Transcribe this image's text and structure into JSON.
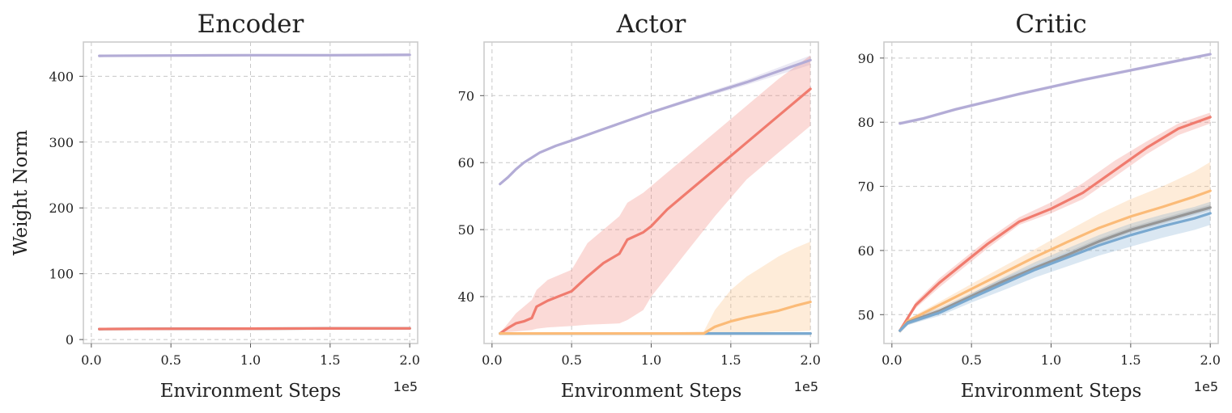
{
  "colors": {
    "purple": "#b3acd6",
    "red": "#f07b6e",
    "orange": "#fbbb78",
    "gray": "#969696",
    "blue": "#7aa9d0"
  },
  "chart_data": [
    {
      "type": "line",
      "title": "Encoder",
      "xlabel": "Environment Steps",
      "ylabel": "Weight Norm",
      "x_offset_label": "1e5",
      "xlim": [
        -0.05,
        2.05
      ],
      "ylim": [
        -6,
        452
      ],
      "xticks": [
        0.0,
        0.5,
        1.0,
        1.5,
        2.0
      ],
      "xtick_labels": [
        "0.0",
        "0.5",
        "1.0",
        "1.5",
        "2.0"
      ],
      "yticks": [
        0,
        100,
        200,
        300,
        400
      ],
      "ytick_labels": [
        "0",
        "100",
        "200",
        "300",
        "400"
      ],
      "grid": true,
      "series": [
        {
          "color": "purple",
          "x": [
            0.05,
            0.5,
            1.0,
            1.5,
            2.0
          ],
          "y": [
            431,
            431.5,
            432,
            432,
            432.5
          ],
          "band": 2
        },
        {
          "color": "gray",
          "x": [
            0.05,
            0.5,
            1.0,
            1.5,
            2.0
          ],
          "y": [
            16,
            16.3,
            16.6,
            16.8,
            17
          ],
          "band": 1
        },
        {
          "color": "orange",
          "x": [
            0.05,
            0.5,
            1.0,
            1.5,
            2.0
          ],
          "y": [
            16,
            16.3,
            16.6,
            16.8,
            17
          ],
          "band": 1
        },
        {
          "color": "blue",
          "x": [
            0.05,
            0.5,
            1.0,
            1.5,
            2.0
          ],
          "y": [
            16,
            16.3,
            16.6,
            16.8,
            17
          ],
          "band": 1
        },
        {
          "color": "red",
          "x": [
            0.05,
            0.5,
            1.0,
            1.5,
            2.0
          ],
          "y": [
            16,
            16.3,
            16.6,
            16.8,
            17
          ],
          "band": 1
        }
      ]
    },
    {
      "type": "line",
      "title": "Actor",
      "xlabel": "Environment Steps",
      "ylabel": "",
      "x_offset_label": "1e5",
      "xlim": [
        -0.05,
        2.05
      ],
      "ylim": [
        33,
        78
      ],
      "xticks": [
        0.0,
        0.5,
        1.0,
        1.5,
        2.0
      ],
      "xtick_labels": [
        "0.0",
        "0.5",
        "1.0",
        "1.5",
        "2.0"
      ],
      "yticks": [
        40,
        50,
        60,
        70
      ],
      "ytick_labels": [
        "40",
        "50",
        "60",
        "70"
      ],
      "grid": true,
      "series": [
        {
          "color": "purple",
          "x": [
            0.05,
            0.1,
            0.15,
            0.2,
            0.3,
            0.4,
            0.5,
            0.7,
            1.0,
            1.3,
            1.6,
            2.0
          ],
          "y": [
            56.8,
            57.8,
            59.0,
            60.0,
            61.5,
            62.5,
            63.3,
            65.0,
            67.5,
            69.8,
            72.0,
            75.3
          ],
          "lo": [
            56.6,
            57.6,
            58.8,
            59.8,
            61.3,
            62.3,
            63.1,
            64.8,
            67.3,
            69.5,
            71.6,
            74.6
          ],
          "hi": [
            57.0,
            58.0,
            59.2,
            60.2,
            61.7,
            62.7,
            63.5,
            65.2,
            67.7,
            70.1,
            72.4,
            76.0
          ]
        },
        {
          "color": "red",
          "x": [
            0.05,
            0.1,
            0.15,
            0.2,
            0.25,
            0.28,
            0.35,
            0.5,
            0.6,
            0.7,
            0.8,
            0.85,
            0.95,
            1.0,
            1.1,
            1.2,
            1.4,
            1.6,
            1.8,
            2.0
          ],
          "y": [
            34.5,
            35.3,
            36.0,
            36.3,
            36.8,
            38.5,
            39.4,
            40.8,
            43.0,
            45.0,
            46.4,
            48.5,
            49.6,
            50.5,
            53.0,
            55.0,
            59.0,
            63.0,
            67.0,
            71.0
          ],
          "lo": [
            34.5,
            34.7,
            34.8,
            34.9,
            35.0,
            35.2,
            35.4,
            35.6,
            35.8,
            35.9,
            36.0,
            36.5,
            38.0,
            40.0,
            43.0,
            46.0,
            52.0,
            57.5,
            61.5,
            65.5
          ],
          "hi": [
            34.6,
            36.0,
            37.5,
            38.5,
            39.5,
            41.0,
            42.5,
            44.0,
            48.0,
            50.0,
            52.0,
            54.0,
            55.5,
            56.5,
            58.5,
            60.5,
            64.5,
            68.5,
            72.5,
            76.0
          ]
        },
        {
          "color": "gray",
          "x": [
            0.05,
            0.5,
            1.0,
            1.5,
            2.0
          ],
          "y": [
            34.5,
            34.5,
            34.5,
            34.5,
            34.5
          ],
          "band": 0.1
        },
        {
          "color": "blue",
          "x": [
            0.05,
            0.5,
            1.0,
            1.5,
            2.0
          ],
          "y": [
            34.5,
            34.5,
            34.5,
            34.5,
            34.5
          ],
          "band": 0.15
        },
        {
          "color": "orange",
          "x": [
            0.05,
            0.5,
            1.0,
            1.33,
            1.4,
            1.5,
            1.6,
            1.7,
            1.8,
            1.9,
            2.0
          ],
          "y": [
            34.5,
            34.5,
            34.5,
            34.5,
            35.5,
            36.3,
            36.9,
            37.4,
            37.9,
            38.6,
            39.2
          ],
          "lo": [
            34.5,
            34.5,
            34.5,
            34.5,
            34.6,
            34.6,
            34.7,
            34.7,
            34.8,
            34.8,
            34.9
          ],
          "hi": [
            34.6,
            34.6,
            34.6,
            34.8,
            38.0,
            41.0,
            43.0,
            44.5,
            46.0,
            47.2,
            48.2
          ]
        }
      ]
    },
    {
      "type": "line",
      "title": "Critic",
      "xlabel": "Environment Steps",
      "ylabel": "",
      "x_offset_label": "1e5",
      "xlim": [
        -0.05,
        2.05
      ],
      "ylim": [
        45.5,
        92.5
      ],
      "xticks": [
        0.0,
        0.5,
        1.0,
        1.5,
        2.0
      ],
      "xtick_labels": [
        "0.0",
        "0.5",
        "1.0",
        "1.5",
        "2.0"
      ],
      "yticks": [
        50,
        60,
        70,
        80,
        90
      ],
      "ytick_labels": [
        "50",
        "60",
        "70",
        "80",
        "90"
      ],
      "grid": true,
      "series": [
        {
          "color": "purple",
          "x": [
            0.05,
            0.2,
            0.4,
            0.6,
            0.8,
            1.0,
            1.2,
            1.4,
            1.6,
            1.8,
            2.0
          ],
          "y": [
            79.8,
            80.6,
            82.0,
            83.2,
            84.4,
            85.5,
            86.6,
            87.6,
            88.6,
            89.6,
            90.6
          ],
          "band": 0.25
        },
        {
          "color": "red",
          "x": [
            0.05,
            0.15,
            0.3,
            0.45,
            0.6,
            0.8,
            1.0,
            1.2,
            1.4,
            1.6,
            1.8,
            2.0
          ],
          "y": [
            47.5,
            51.5,
            55.0,
            58.0,
            61.0,
            64.5,
            66.5,
            69.0,
            72.5,
            76.0,
            79.0,
            80.8
          ],
          "lo": [
            47.5,
            51.0,
            54.3,
            57.3,
            60.3,
            64.0,
            65.8,
            68.0,
            71.5,
            75.0,
            78.0,
            79.8
          ],
          "hi": [
            47.6,
            52.0,
            55.7,
            58.7,
            61.7,
            65.2,
            67.5,
            70.5,
            74.0,
            77.0,
            79.8,
            81.5
          ]
        },
        {
          "color": "orange",
          "x": [
            0.05,
            0.1,
            0.3,
            0.5,
            0.7,
            0.9,
            1.1,
            1.3,
            1.5,
            1.7,
            1.9,
            2.0
          ],
          "y": [
            47.5,
            49.0,
            51.5,
            54.0,
            56.5,
            59.0,
            61.3,
            63.5,
            65.3,
            66.8,
            68.4,
            69.3
          ],
          "lo": [
            47.5,
            48.7,
            51.0,
            53.2,
            55.5,
            57.8,
            59.7,
            61.5,
            63.0,
            64.5,
            65.8,
            66.5
          ],
          "hi": [
            47.6,
            49.3,
            52.0,
            54.8,
            57.5,
            60.2,
            63.0,
            65.7,
            68.0,
            70.0,
            72.3,
            73.8
          ]
        },
        {
          "color": "gray",
          "x": [
            0.05,
            0.1,
            0.3,
            0.5,
            0.7,
            0.9,
            1.1,
            1.3,
            1.5,
            1.7,
            1.9,
            2.0
          ],
          "y": [
            47.5,
            48.8,
            50.6,
            52.9,
            55.2,
            57.3,
            59.3,
            61.4,
            63.2,
            64.6,
            66.0,
            66.7
          ],
          "band": 0.45
        },
        {
          "color": "blue",
          "x": [
            0.05,
            0.1,
            0.3,
            0.5,
            0.7,
            0.9,
            1.1,
            1.3,
            1.5,
            1.7,
            1.9,
            2.0
          ],
          "y": [
            47.5,
            48.7,
            50.3,
            52.6,
            54.8,
            57.0,
            58.9,
            60.8,
            62.4,
            63.8,
            65.0,
            65.8
          ],
          "lo": [
            47.5,
            48.4,
            49.8,
            51.9,
            53.8,
            55.8,
            57.5,
            59.2,
            60.6,
            62.0,
            63.2,
            64.0
          ],
          "hi": [
            47.6,
            49.0,
            50.8,
            53.3,
            55.8,
            58.2,
            60.3,
            62.4,
            64.2,
            65.6,
            66.8,
            67.6
          ]
        }
      ]
    }
  ]
}
